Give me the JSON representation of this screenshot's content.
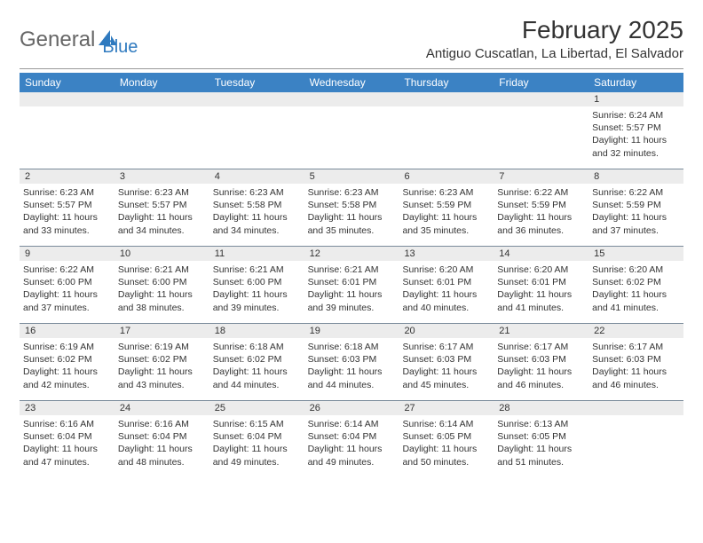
{
  "logo": {
    "text1": "General",
    "text2": "Blue"
  },
  "title": "February 2025",
  "location": "Antiguo Cuscatlan, La Libertad, El Salvador",
  "colors": {
    "header_bg": "#3b82c4",
    "header_text": "#ffffff",
    "date_bar_bg": "#ececec",
    "text": "#333333",
    "logo_gray": "#666666",
    "logo_blue": "#2f7abf",
    "row_border": "#7a8a9a"
  },
  "weekdays": [
    "Sunday",
    "Monday",
    "Tuesday",
    "Wednesday",
    "Thursday",
    "Friday",
    "Saturday"
  ],
  "cells": {
    "w0": {
      "d0": null,
      "d1": null,
      "d2": null,
      "d3": null,
      "d4": null,
      "d5": null,
      "d6": {
        "n": "1",
        "sr": "Sunrise: 6:24 AM",
        "ss": "Sunset: 5:57 PM",
        "dl1": "Daylight: 11 hours",
        "dl2": "and 32 minutes."
      }
    },
    "w1": {
      "d0": {
        "n": "2",
        "sr": "Sunrise: 6:23 AM",
        "ss": "Sunset: 5:57 PM",
        "dl1": "Daylight: 11 hours",
        "dl2": "and 33 minutes."
      },
      "d1": {
        "n": "3",
        "sr": "Sunrise: 6:23 AM",
        "ss": "Sunset: 5:57 PM",
        "dl1": "Daylight: 11 hours",
        "dl2": "and 34 minutes."
      },
      "d2": {
        "n": "4",
        "sr": "Sunrise: 6:23 AM",
        "ss": "Sunset: 5:58 PM",
        "dl1": "Daylight: 11 hours",
        "dl2": "and 34 minutes."
      },
      "d3": {
        "n": "5",
        "sr": "Sunrise: 6:23 AM",
        "ss": "Sunset: 5:58 PM",
        "dl1": "Daylight: 11 hours",
        "dl2": "and 35 minutes."
      },
      "d4": {
        "n": "6",
        "sr": "Sunrise: 6:23 AM",
        "ss": "Sunset: 5:59 PM",
        "dl1": "Daylight: 11 hours",
        "dl2": "and 35 minutes."
      },
      "d5": {
        "n": "7",
        "sr": "Sunrise: 6:22 AM",
        "ss": "Sunset: 5:59 PM",
        "dl1": "Daylight: 11 hours",
        "dl2": "and 36 minutes."
      },
      "d6": {
        "n": "8",
        "sr": "Sunrise: 6:22 AM",
        "ss": "Sunset: 5:59 PM",
        "dl1": "Daylight: 11 hours",
        "dl2": "and 37 minutes."
      }
    },
    "w2": {
      "d0": {
        "n": "9",
        "sr": "Sunrise: 6:22 AM",
        "ss": "Sunset: 6:00 PM",
        "dl1": "Daylight: 11 hours",
        "dl2": "and 37 minutes."
      },
      "d1": {
        "n": "10",
        "sr": "Sunrise: 6:21 AM",
        "ss": "Sunset: 6:00 PM",
        "dl1": "Daylight: 11 hours",
        "dl2": "and 38 minutes."
      },
      "d2": {
        "n": "11",
        "sr": "Sunrise: 6:21 AM",
        "ss": "Sunset: 6:00 PM",
        "dl1": "Daylight: 11 hours",
        "dl2": "and 39 minutes."
      },
      "d3": {
        "n": "12",
        "sr": "Sunrise: 6:21 AM",
        "ss": "Sunset: 6:01 PM",
        "dl1": "Daylight: 11 hours",
        "dl2": "and 39 minutes."
      },
      "d4": {
        "n": "13",
        "sr": "Sunrise: 6:20 AM",
        "ss": "Sunset: 6:01 PM",
        "dl1": "Daylight: 11 hours",
        "dl2": "and 40 minutes."
      },
      "d5": {
        "n": "14",
        "sr": "Sunrise: 6:20 AM",
        "ss": "Sunset: 6:01 PM",
        "dl1": "Daylight: 11 hours",
        "dl2": "and 41 minutes."
      },
      "d6": {
        "n": "15",
        "sr": "Sunrise: 6:20 AM",
        "ss": "Sunset: 6:02 PM",
        "dl1": "Daylight: 11 hours",
        "dl2": "and 41 minutes."
      }
    },
    "w3": {
      "d0": {
        "n": "16",
        "sr": "Sunrise: 6:19 AM",
        "ss": "Sunset: 6:02 PM",
        "dl1": "Daylight: 11 hours",
        "dl2": "and 42 minutes."
      },
      "d1": {
        "n": "17",
        "sr": "Sunrise: 6:19 AM",
        "ss": "Sunset: 6:02 PM",
        "dl1": "Daylight: 11 hours",
        "dl2": "and 43 minutes."
      },
      "d2": {
        "n": "18",
        "sr": "Sunrise: 6:18 AM",
        "ss": "Sunset: 6:02 PM",
        "dl1": "Daylight: 11 hours",
        "dl2": "and 44 minutes."
      },
      "d3": {
        "n": "19",
        "sr": "Sunrise: 6:18 AM",
        "ss": "Sunset: 6:03 PM",
        "dl1": "Daylight: 11 hours",
        "dl2": "and 44 minutes."
      },
      "d4": {
        "n": "20",
        "sr": "Sunrise: 6:17 AM",
        "ss": "Sunset: 6:03 PM",
        "dl1": "Daylight: 11 hours",
        "dl2": "and 45 minutes."
      },
      "d5": {
        "n": "21",
        "sr": "Sunrise: 6:17 AM",
        "ss": "Sunset: 6:03 PM",
        "dl1": "Daylight: 11 hours",
        "dl2": "and 46 minutes."
      },
      "d6": {
        "n": "22",
        "sr": "Sunrise: 6:17 AM",
        "ss": "Sunset: 6:03 PM",
        "dl1": "Daylight: 11 hours",
        "dl2": "and 46 minutes."
      }
    },
    "w4": {
      "d0": {
        "n": "23",
        "sr": "Sunrise: 6:16 AM",
        "ss": "Sunset: 6:04 PM",
        "dl1": "Daylight: 11 hours",
        "dl2": "and 47 minutes."
      },
      "d1": {
        "n": "24",
        "sr": "Sunrise: 6:16 AM",
        "ss": "Sunset: 6:04 PM",
        "dl1": "Daylight: 11 hours",
        "dl2": "and 48 minutes."
      },
      "d2": {
        "n": "25",
        "sr": "Sunrise: 6:15 AM",
        "ss": "Sunset: 6:04 PM",
        "dl1": "Daylight: 11 hours",
        "dl2": "and 49 minutes."
      },
      "d3": {
        "n": "26",
        "sr": "Sunrise: 6:14 AM",
        "ss": "Sunset: 6:04 PM",
        "dl1": "Daylight: 11 hours",
        "dl2": "and 49 minutes."
      },
      "d4": {
        "n": "27",
        "sr": "Sunrise: 6:14 AM",
        "ss": "Sunset: 6:05 PM",
        "dl1": "Daylight: 11 hours",
        "dl2": "and 50 minutes."
      },
      "d5": {
        "n": "28",
        "sr": "Sunrise: 6:13 AM",
        "ss": "Sunset: 6:05 PM",
        "dl1": "Daylight: 11 hours",
        "dl2": "and 51 minutes."
      },
      "d6": null
    }
  }
}
